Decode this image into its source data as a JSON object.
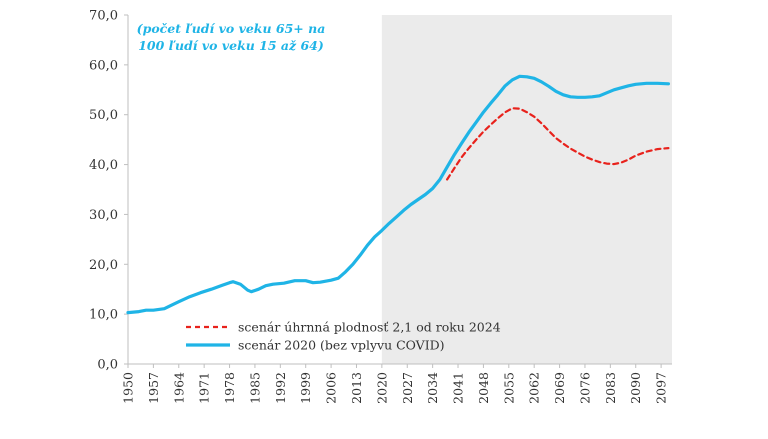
{
  "chart_data": {
    "type": "line",
    "title": "",
    "subtitle": "(počet ľudí vo veku 65+ na 100 ľudí vo veku 15 až 64)",
    "xlabel": "",
    "ylabel": "",
    "xlim": [
      1950,
      2100
    ],
    "ylim": [
      0,
      70
    ],
    "y_ticks": [
      "0,0",
      "10,0",
      "20,0",
      "30,0",
      "40,0",
      "50,0",
      "60,0",
      "70,0"
    ],
    "y_tick_values": [
      0,
      10,
      20,
      30,
      40,
      50,
      60,
      70
    ],
    "x_ticks": [
      "1950",
      "1957",
      "1964",
      "1971",
      "1978",
      "1985",
      "1992",
      "1999",
      "2006",
      "2013",
      "2020",
      "2027",
      "2034",
      "2041",
      "2048",
      "2055",
      "2062",
      "2069",
      "2076",
      "2083",
      "2090",
      "2097"
    ],
    "x_tick_values": [
      1950,
      1957,
      1964,
      1971,
      1978,
      1985,
      1992,
      1999,
      2006,
      2013,
      2020,
      2027,
      2034,
      2041,
      2048,
      2055,
      2062,
      2069,
      2076,
      2083,
      2090,
      2097
    ],
    "projection_shading": {
      "from": 2020,
      "to": 2100,
      "color": "#ebebeb"
    },
    "grid": false,
    "legend_position": "bottom-center",
    "series": [
      {
        "name": "scenár 2020 (bez vplyvu COVID)",
        "color": "#1fb4e6",
        "style": "solid",
        "x": [
          1950,
          1953,
          1955,
          1957,
          1960,
          1962,
          1964,
          1967,
          1970,
          1973,
          1976,
          1978,
          1979,
          1981,
          1983,
          1984,
          1986,
          1988,
          1990,
          1993,
          1996,
          1999,
          2001,
          2003,
          2006,
          2008,
          2010,
          2012,
          2014,
          2016,
          2018,
          2020,
          2022,
          2024,
          2026,
          2028,
          2030,
          2032,
          2034,
          2036,
          2038,
          2040,
          2042,
          2044,
          2046,
          2048,
          2050,
          2052,
          2054,
          2056,
          2058,
          2060,
          2062,
          2064,
          2066,
          2068,
          2070,
          2072,
          2074,
          2076,
          2078,
          2080,
          2082,
          2084,
          2086,
          2088,
          2090,
          2093,
          2096,
          2099
        ],
        "y": [
          10.3,
          10.5,
          10.8,
          10.8,
          11.1,
          11.8,
          12.5,
          13.5,
          14.3,
          15.0,
          15.8,
          16.3,
          16.5,
          16.0,
          14.8,
          14.5,
          15.0,
          15.7,
          16.0,
          16.2,
          16.7,
          16.7,
          16.3,
          16.4,
          16.8,
          17.2,
          18.5,
          20.0,
          21.8,
          23.8,
          25.5,
          26.8,
          28.2,
          29.5,
          30.8,
          32.0,
          33.0,
          34.0,
          35.2,
          37.0,
          39.5,
          42.0,
          44.3,
          46.5,
          48.5,
          50.5,
          52.3,
          54.0,
          55.8,
          57.0,
          57.7,
          57.6,
          57.3,
          56.6,
          55.7,
          54.7,
          54.0,
          53.6,
          53.5,
          53.5,
          53.6,
          53.8,
          54.4,
          55.0,
          55.4,
          55.8,
          56.1,
          56.3,
          56.3,
          56.2
        ]
      },
      {
        "name": "scenár úhrnná plodnosť 2,1 od roku 2024",
        "color": "#e8221c",
        "style": "dashed",
        "x": [
          2038,
          2040,
          2042,
          2044,
          2046,
          2048,
          2050,
          2052,
          2054,
          2056,
          2058,
          2060,
          2062,
          2064,
          2066,
          2068,
          2070,
          2072,
          2074,
          2076,
          2078,
          2080,
          2082,
          2084,
          2086,
          2088,
          2090,
          2093,
          2096,
          2099
        ],
        "y": [
          37.0,
          39.3,
          41.5,
          43.3,
          45.0,
          46.6,
          48.0,
          49.3,
          50.5,
          51.3,
          51.2,
          50.5,
          49.6,
          48.3,
          46.8,
          45.3,
          44.2,
          43.2,
          42.4,
          41.6,
          41.0,
          40.5,
          40.2,
          40.1,
          40.4,
          41.0,
          41.8,
          42.6,
          43.1,
          43.3
        ]
      }
    ]
  }
}
